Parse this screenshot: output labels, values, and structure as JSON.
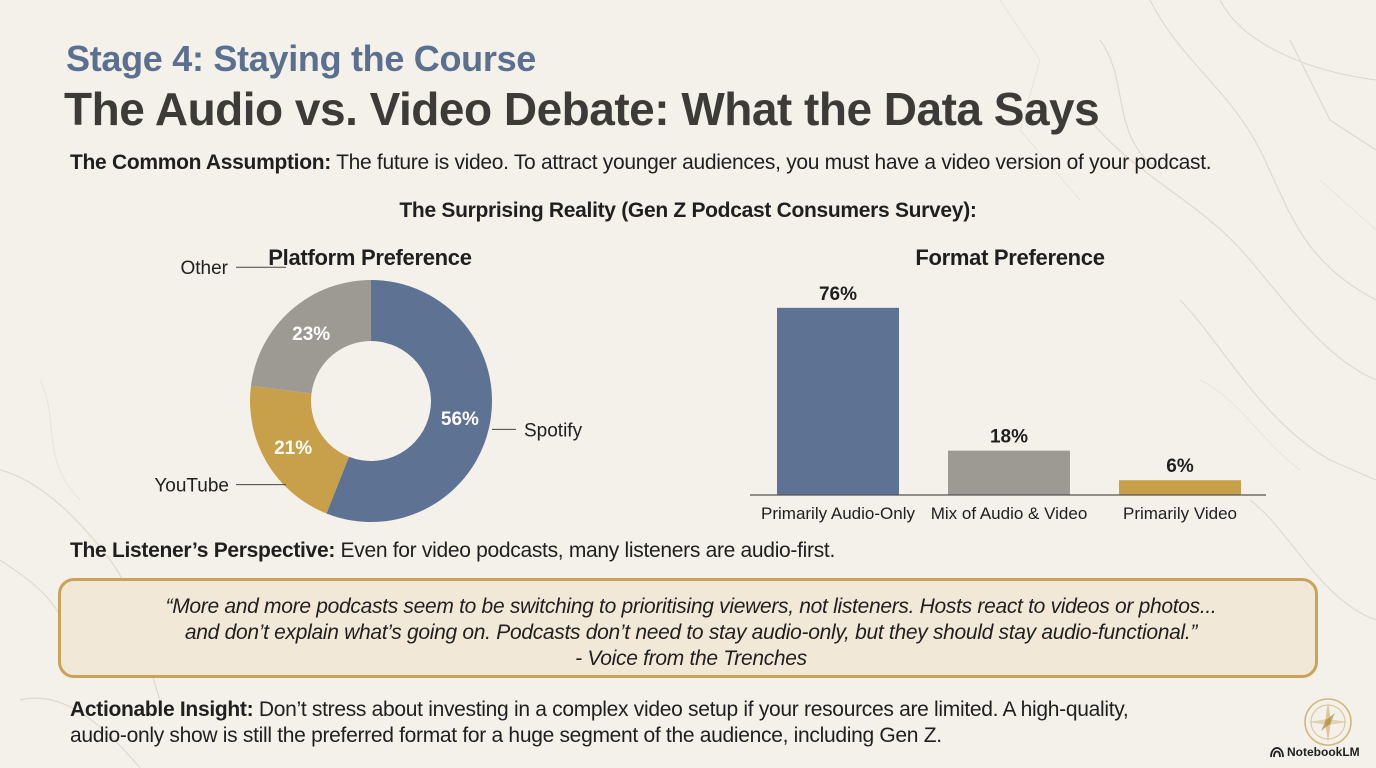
{
  "header": {
    "stage": "Stage 4: Staying the Course",
    "title": "The Audio vs. Video Debate: What the Data Says"
  },
  "assumption": {
    "label": "The Common Assumption:",
    "text": " The future is video. To attract younger audiences, you must have a video version of your podcast."
  },
  "survey_title": "The Surprising Reality (Gen Z Podcast Consumers Survey):",
  "perspective": {
    "label": "The Listener’s Perspective:",
    "text": " Even for video podcasts, many listeners are audio-first."
  },
  "quote": {
    "line1": "“More and more podcasts seem to be switching to prioritising viewers, not listeners. Hosts react to videos or photos...",
    "line2": "and don’t explain what’s going on. Podcasts don’t need to stay audio-only, but they should stay audio-functional.”",
    "attribution": "- Voice from the Trenches"
  },
  "insight": {
    "label": "Actionable Insight:",
    "line1": " Don’t stress about investing in a complex video setup if your resources are limited. A high-quality,",
    "line2": "audio-only show is still the preferred format for a huge segment of the audience, including Gen Z."
  },
  "brand": {
    "name": "NotebookLM",
    "icon": "notebooklm-logo-icon",
    "compass_icon": "compass-icon"
  },
  "colors": {
    "blue": "#5e7294",
    "gold": "#c8a04a",
    "gray": "#9d9a93",
    "title_blue": "#5b6f8e",
    "quote_border": "#c9a35a",
    "quote_fill": "#f2e8d8"
  },
  "chart_data": [
    {
      "type": "pie",
      "title": "Platform Preference",
      "donut": true,
      "slices": [
        {
          "label": "Spotify",
          "value": 56,
          "display": "56%",
          "color": "#5e7294"
        },
        {
          "label": "YouTube",
          "value": 21,
          "display": "21%",
          "color": "#c8a04a"
        },
        {
          "label": "Other",
          "value": 23,
          "display": "23%",
          "color": "#9d9a93"
        }
      ]
    },
    {
      "type": "bar",
      "title": "Format Preference",
      "categories": [
        "Primarily Audio-Only",
        "Mix of Audio & Video",
        "Primarily Video"
      ],
      "values": [
        76,
        18,
        6
      ],
      "labels": [
        "76%",
        "18%",
        "6%"
      ],
      "colors": [
        "#5e7294",
        "#9d9a93",
        "#c8a04a"
      ],
      "ylim": [
        0,
        80
      ],
      "grid": false
    }
  ]
}
